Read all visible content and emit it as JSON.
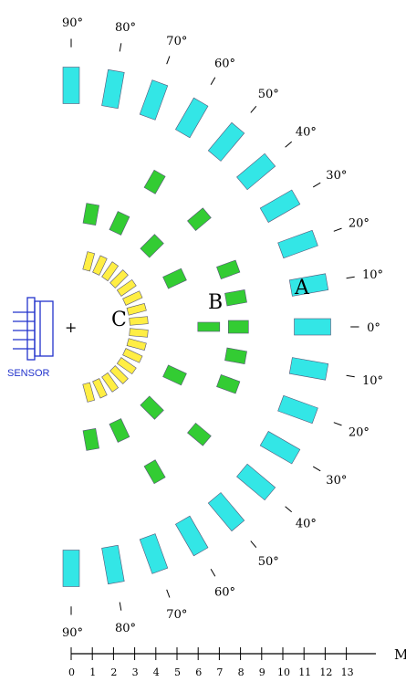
{
  "sensor_label": "SENSOR",
  "center_mark": "+",
  "zones": [
    {
      "id": "A",
      "label": "A",
      "color": "#33e6e6",
      "radius_m": 11.4,
      "angles_deg": [
        -90,
        -80,
        -70,
        -60,
        -50,
        -40,
        -30,
        -20,
        -10,
        0,
        10,
        20,
        30,
        40,
        50,
        60,
        70,
        80,
        90
      ]
    },
    {
      "id": "B",
      "label": "B",
      "color": "#33cc33",
      "radius_m_outer": 7.9,
      "radius_m_inner": 5.4,
      "outer_angles_deg": [
        -60,
        -40,
        -20,
        -10,
        0,
        10,
        20,
        40,
        60
      ],
      "inner_angles_deg": [
        -80,
        -65,
        -45,
        -25,
        25,
        45,
        65,
        80
      ],
      "center_marker_radius_m": 6.5
    },
    {
      "id": "C",
      "label": "C",
      "color": "#ffee44",
      "radius_m": 3.2,
      "angles_deg": [
        -75,
        -65,
        -55,
        -45,
        -35,
        -25,
        -15,
        -5,
        5,
        15,
        25,
        35,
        45,
        55,
        65,
        75
      ]
    }
  ],
  "angle_labels_top": [
    "90°",
    "80°",
    "70°",
    "60°",
    "50°",
    "40°",
    "30°",
    "20°",
    "10°",
    "0°"
  ],
  "angle_labels_bottom": [
    "10°",
    "20°",
    "30°",
    "40°",
    "50°",
    "60°",
    "70°",
    "80°",
    "90°"
  ],
  "scale": {
    "ticks": [
      "0",
      "1",
      "2",
      "3",
      "4",
      "5",
      "6",
      "7",
      "8",
      "9",
      "10",
      "11",
      "12",
      "13"
    ],
    "unit": "M"
  }
}
